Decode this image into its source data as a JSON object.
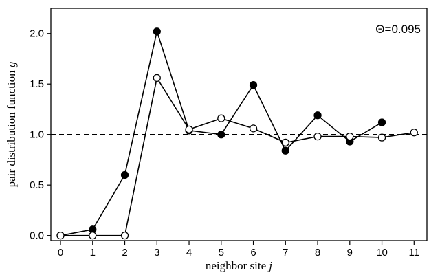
{
  "chart_data": {
    "type": "line",
    "title": "",
    "xlabel": "neighbor site",
    "xlabel_var": "j",
    "ylabel": "pair distribution function",
    "ylabel_var": "g",
    "xlim": [
      -0.3,
      11.4
    ],
    "ylim": [
      -0.05,
      2.25
    ],
    "xticks": [
      0,
      1,
      2,
      3,
      4,
      5,
      6,
      7,
      8,
      9,
      10,
      11
    ],
    "xtick_labels": [
      "0",
      "1",
      "2",
      "3",
      "4",
      "5",
      "6",
      "7",
      "8",
      "9",
      "10",
      "11"
    ],
    "yticks": [
      0.0,
      0.5,
      1.0,
      1.5,
      2.0
    ],
    "ytick_labels": [
      "0.0",
      "0.5",
      "1.0",
      "1.5",
      "2.0"
    ],
    "grid": false,
    "reference_line": {
      "y": 1.0,
      "style": "dashed"
    },
    "annotation": "Θ=0.095",
    "series": [
      {
        "marker": "filled-circle",
        "color": "#000000",
        "x": [
          0,
          1,
          2,
          3,
          4,
          5,
          6,
          7,
          8,
          9,
          10
        ],
        "values": [
          0.0,
          0.06,
          0.6,
          2.02,
          1.04,
          1.0,
          1.49,
          0.84,
          1.19,
          0.93,
          1.12
        ]
      },
      {
        "marker": "open-circle",
        "color": "#000000",
        "x": [
          0,
          1,
          2,
          3,
          4,
          5,
          6,
          7,
          8,
          9,
          10,
          11
        ],
        "values": [
          0.0,
          0.0,
          0.0,
          1.56,
          1.05,
          1.16,
          1.06,
          0.92,
          0.98,
          0.98,
          0.97,
          1.02
        ]
      }
    ]
  }
}
